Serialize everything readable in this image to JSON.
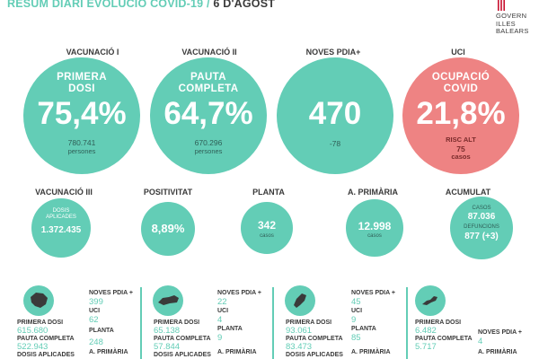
{
  "header": {
    "title": "RESUM DIARI EVOLUCIÓ COVID-19",
    "separator": "/",
    "date": "6 D'AGOST"
  },
  "logo": {
    "line1": "GOVERN",
    "line2": "ILLES",
    "line3": "BALEARS",
    "icon": "govern-logo-icon"
  },
  "top": [
    {
      "category": "VACUNACIÓ I",
      "label1": "PRIMERA",
      "label2": "DOSI",
      "value": "75,4%",
      "sub1": "780.741",
      "sub2": "persones",
      "color": "teal"
    },
    {
      "category": "VACUNACIÓ II",
      "label1": "PAUTA",
      "label2": "COMPLETA",
      "value": "64,7%",
      "sub1": "670.296",
      "sub2": "persones",
      "color": "teal"
    },
    {
      "category": "NOVES PDIA+",
      "value": "470",
      "sub1": "-78",
      "color": "teal"
    },
    {
      "category": "UCI",
      "label1": "OCUPACIÓ",
      "label2": "COVID",
      "value": "21,8%",
      "sub1": "RISC ALT",
      "sub2": "75",
      "sub3": "casos",
      "color": "red"
    }
  ],
  "middle": [
    {
      "category": "VACUNACIÓ III",
      "unit1": "DOSIS",
      "unit2": "APLICADES",
      "value": "1.372.435"
    },
    {
      "category": "POSITIVITAT",
      "value": "8,89%"
    },
    {
      "category": "PLANTA",
      "value": "342",
      "unit": "casos"
    },
    {
      "category": "A. PRIMÀRIA",
      "value": "12.998",
      "unit": "casos"
    },
    {
      "category": "ACUMULAT",
      "l1": "CASOS",
      "v1": "87.036",
      "l2": "DEFUNCIONS",
      "v2": "877 (+3)"
    }
  ],
  "islands": [
    {
      "icon": "mallorca-map-icon",
      "left": [
        {
          "label": "PRIMERA DOSI",
          "value": "615.680"
        },
        {
          "label": "PAUTA COMPLETA",
          "value": "522.943"
        },
        {
          "label": "DOSIS APLICADES",
          "value": ""
        }
      ],
      "right": [
        {
          "label": "NOVES PDIA +",
          "value": "399"
        },
        {
          "label": "UCI",
          "value": "62"
        },
        {
          "label": "PLANTA",
          "value": "248"
        },
        {
          "label": "A. PRIMÀRIA",
          "value": ""
        }
      ]
    },
    {
      "icon": "menorca-map-icon",
      "left": [
        {
          "label": "PRIMERA DOSI",
          "value": "65.138"
        },
        {
          "label": "PAUTA COMPLETA",
          "value": "57.844"
        },
        {
          "label": "DOSIS APLICADES",
          "value": ""
        }
      ],
      "right": [
        {
          "label": "NOVES PDIA +",
          "value": "22"
        },
        {
          "label": "UCI",
          "value": "4"
        },
        {
          "label": "PLANTA",
          "value": "9"
        },
        {
          "label": "A. PRIMÀRIA",
          "value": ""
        }
      ]
    },
    {
      "icon": "eivissa-map-icon",
      "left": [
        {
          "label": "PRIMERA DOSI",
          "value": "93.061"
        },
        {
          "label": "PAUTA COMPLETA",
          "value": "83.473"
        },
        {
          "label": "DOSIS APLICADES",
          "value": ""
        }
      ],
      "right": [
        {
          "label": "NOVES PDIA +",
          "value": "45"
        },
        {
          "label": "UCI",
          "value": "9"
        },
        {
          "label": "PLANTA",
          "value": "85"
        },
        {
          "label": "A. PRIMÀRIA",
          "value": ""
        }
      ]
    },
    {
      "icon": "formentera-map-icon",
      "left": [
        {
          "label": "PRIMERA DOSI",
          "value": "6.482"
        },
        {
          "label": "PAUTA COMPLETA",
          "value": "5.717"
        }
      ],
      "right": [
        {
          "label": "NOVES PDIA +",
          "value": "4"
        },
        {
          "label": "A. PRIMÀRIA",
          "value": ""
        }
      ]
    }
  ],
  "colors": {
    "teal": "#63cdb6",
    "red": "#ee8383",
    "text": "#3a3a3a"
  }
}
